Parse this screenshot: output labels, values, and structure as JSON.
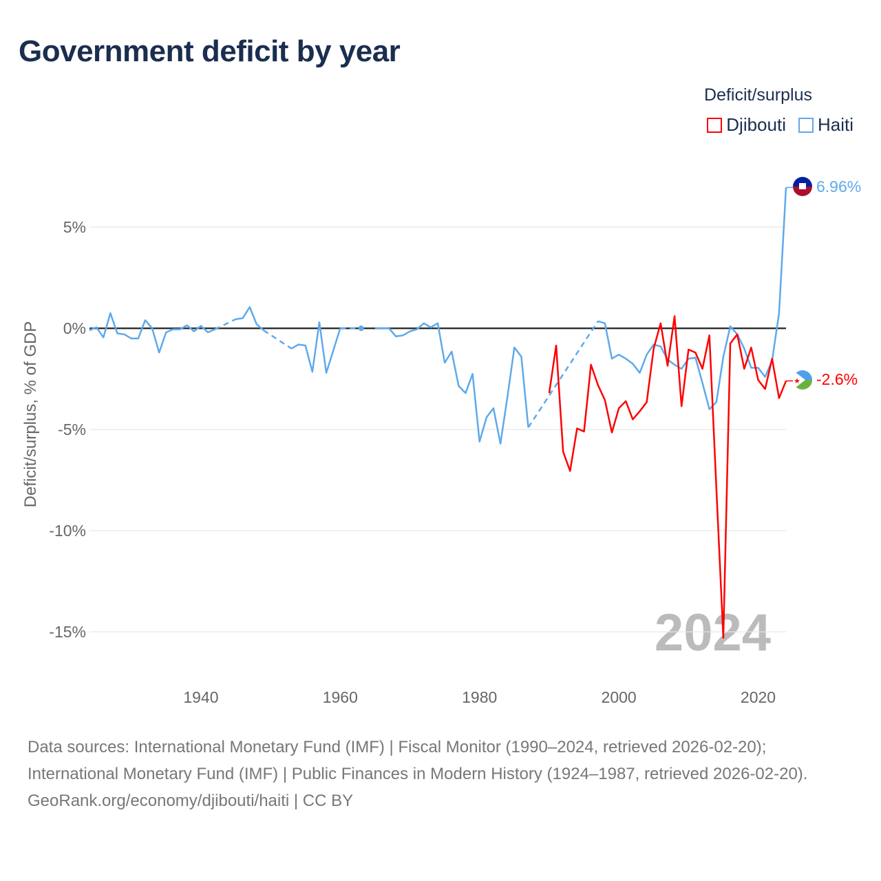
{
  "title": "Government deficit by year",
  "legend": {
    "title": "Deficit/surplus",
    "items": [
      {
        "name": "Djibouti",
        "color": "#ff0000"
      },
      {
        "name": "Haiti",
        "color": "#5ea9ec"
      }
    ]
  },
  "watermark_year": "2024",
  "footer": {
    "sources": "Data sources: International Monetary Fund (IMF) | Fiscal Monitor (1990–2024, retrieved 2026-02-20); International Monetary Fund (IMF) | Public Finances in Modern History (1924–1987, retrieved 2026-02-20).",
    "credit": "GeoRank.org/economy/djibouti/haiti | CC BY"
  },
  "chart_data": {
    "type": "line",
    "title": "Government deficit by year",
    "ylabel": "Deficit/surplus, % of GDP",
    "xlabel": "",
    "xlim": [
      1924,
      2024
    ],
    "ylim": [
      -17,
      7
    ],
    "yticks": [
      {
        "v": 5,
        "label": "5%"
      },
      {
        "v": 0,
        "label": "0%"
      },
      {
        "v": -5,
        "label": "-5%"
      },
      {
        "v": -10,
        "label": "-10%"
      },
      {
        "v": -15,
        "label": "-15%"
      }
    ],
    "xticks": [
      {
        "v": 1940,
        "label": "1940"
      },
      {
        "v": 1960,
        "label": "1960"
      },
      {
        "v": 1980,
        "label": "1980"
      },
      {
        "v": 2000,
        "label": "2000"
      },
      {
        "v": 2020,
        "label": "2020"
      }
    ],
    "grid": true,
    "legend_position": "top-right",
    "series": [
      {
        "name": "Haiti",
        "color": "#5ea9ec",
        "end_label": "6.96%",
        "points": [
          [
            1924,
            -0.1
          ],
          [
            1925,
            0.05
          ],
          [
            1926,
            -0.45
          ],
          [
            1927,
            0.75
          ],
          [
            1928,
            -0.25
          ],
          [
            1929,
            -0.3
          ],
          [
            1930,
            -0.5
          ],
          [
            1931,
            -0.5
          ],
          [
            1932,
            0.4
          ],
          [
            1933,
            0
          ],
          [
            1934,
            -1.2
          ],
          [
            1935,
            -0.2
          ],
          [
            1936,
            -0.05
          ],
          [
            1937,
            -0.05
          ],
          [
            1938,
            0.15
          ],
          [
            1939,
            -0.15
          ],
          [
            1940,
            0.12
          ],
          [
            1941,
            -0.2
          ],
          [
            1942,
            -0.05
          ],
          [
            1945,
            0.45
          ],
          [
            1946,
            0.5
          ],
          [
            1947,
            1.05
          ],
          [
            1948,
            0.2
          ],
          [
            1949,
            -0.1
          ],
          [
            1953,
            -1.0
          ],
          [
            1954,
            -0.8
          ],
          [
            1955,
            -0.85
          ],
          [
            1956,
            -2.15
          ],
          [
            1957,
            0.3
          ],
          [
            1958,
            -2.2
          ],
          [
            1959,
            -1.1
          ],
          [
            1960,
            0
          ],
          [
            1963,
            0
          ],
          [
            1965,
            0
          ],
          [
            1966,
            0
          ],
          [
            1967,
            0
          ],
          [
            1968,
            -0.4
          ],
          [
            1969,
            -0.35
          ],
          [
            1970,
            -0.15
          ],
          [
            1971,
            -0.05
          ],
          [
            1972,
            0.25
          ],
          [
            1973,
            0.05
          ],
          [
            1974,
            0.25
          ],
          [
            1975,
            -1.7
          ],
          [
            1976,
            -1.15
          ],
          [
            1977,
            -2.85
          ],
          [
            1978,
            -3.2
          ],
          [
            1979,
            -2.25
          ],
          [
            1980,
            -5.6
          ],
          [
            1981,
            -4.4
          ],
          [
            1982,
            -3.95
          ],
          [
            1983,
            -5.7
          ],
          [
            1984,
            -3.4
          ],
          [
            1985,
            -0.95
          ],
          [
            1986,
            -1.4
          ],
          [
            1987,
            -4.9
          ],
          [
            1997,
            0.35
          ],
          [
            1998,
            0.25
          ],
          [
            1999,
            -1.5
          ],
          [
            2000,
            -1.3
          ],
          [
            2001,
            -1.5
          ],
          [
            2002,
            -1.75
          ],
          [
            2003,
            -2.2
          ],
          [
            2004,
            -1.3
          ],
          [
            2005,
            -0.8
          ],
          [
            2006,
            -0.9
          ],
          [
            2007,
            -1.55
          ],
          [
            2008,
            -1.8
          ],
          [
            2009,
            -2.0
          ],
          [
            2010,
            -1.5
          ],
          [
            2011,
            -1.45
          ],
          [
            2012,
            -2.7
          ],
          [
            2013,
            -4.0
          ],
          [
            2014,
            -3.65
          ],
          [
            2015,
            -1.4
          ],
          [
            2016,
            0.1
          ],
          [
            2017,
            -0.3
          ],
          [
            2018,
            -1.0
          ],
          [
            2019,
            -1.95
          ],
          [
            2020,
            -1.95
          ],
          [
            2021,
            -2.4
          ],
          [
            2022,
            -1.6
          ],
          [
            2023,
            0.75
          ],
          [
            2024,
            6.96
          ]
        ]
      },
      {
        "name": "Djibouti",
        "color": "#ff0000",
        "end_label": "-2.6%",
        "points": [
          [
            1990,
            -3.2
          ],
          [
            1991,
            -0.85
          ],
          [
            1992,
            -6.1
          ],
          [
            1993,
            -7.05
          ],
          [
            1994,
            -4.95
          ],
          [
            1995,
            -5.1
          ],
          [
            1996,
            -1.8
          ],
          [
            1997,
            -2.8
          ],
          [
            1998,
            -3.55
          ],
          [
            1999,
            -5.15
          ],
          [
            2000,
            -3.95
          ],
          [
            2001,
            -3.6
          ],
          [
            2002,
            -4.5
          ],
          [
            2003,
            -4.1
          ],
          [
            2004,
            -3.65
          ],
          [
            2005,
            -1.0
          ],
          [
            2006,
            0.25
          ],
          [
            2007,
            -1.85
          ],
          [
            2008,
            0.6
          ],
          [
            2009,
            -3.85
          ],
          [
            2010,
            -1.05
          ],
          [
            2011,
            -1.2
          ],
          [
            2012,
            -2.0
          ],
          [
            2013,
            -0.35
          ],
          [
            2014,
            -7.9
          ],
          [
            2015,
            -15.3
          ],
          [
            2016,
            -0.75
          ],
          [
            2017,
            -0.3
          ],
          [
            2018,
            -2.0
          ],
          [
            2019,
            -0.95
          ],
          [
            2020,
            -2.55
          ],
          [
            2021,
            -3.0
          ],
          [
            2022,
            -1.5
          ],
          [
            2023,
            -3.45
          ],
          [
            2024,
            -2.6
          ]
        ]
      }
    ]
  }
}
